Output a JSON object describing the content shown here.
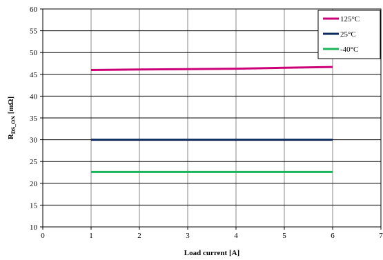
{
  "chart_data": {
    "type": "line",
    "title": "",
    "xlabel": "Load current [A]",
    "ylabel_main": "R",
    "ylabel_sub": "DS_ON",
    "ylabel_unit": " [mΩ]",
    "xlim": [
      0,
      7
    ],
    "ylim": [
      10,
      60
    ],
    "x_ticks": [
      0,
      1,
      2,
      3,
      4,
      5,
      6,
      7
    ],
    "y_ticks": [
      10,
      15,
      20,
      25,
      30,
      35,
      40,
      45,
      50,
      55,
      60
    ],
    "grid": true,
    "legend_position": "top-right",
    "series": [
      {
        "name": "125°C",
        "color": "#cc0077",
        "x": [
          1,
          2,
          3,
          4,
          5,
          6
        ],
        "y": [
          46.0,
          46.1,
          46.2,
          46.3,
          46.5,
          46.7
        ]
      },
      {
        "name": "25°C",
        "color": "#0d2b5e",
        "x": [
          1,
          2,
          3,
          4,
          5,
          6
        ],
        "y": [
          30.0,
          30.0,
          30.0,
          30.0,
          30.0,
          30.0
        ]
      },
      {
        "name": "-40°C",
        "color": "#1ab55a",
        "x": [
          1,
          2,
          3,
          4,
          5,
          6
        ],
        "y": [
          22.6,
          22.6,
          22.6,
          22.6,
          22.6,
          22.6
        ]
      }
    ]
  }
}
